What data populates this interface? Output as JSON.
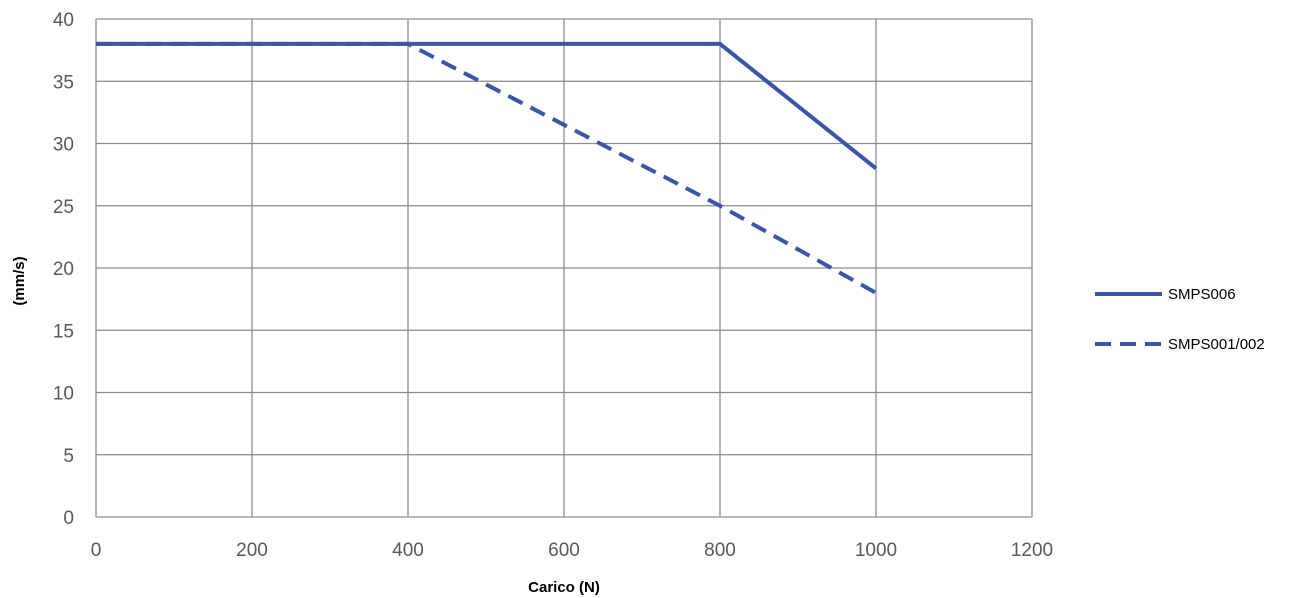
{
  "chart_data": {
    "type": "line",
    "title": "",
    "xlabel": "Carico (N)",
    "ylabel": "(mm/s)",
    "xlim": [
      0,
      1200
    ],
    "ylim": [
      0,
      40
    ],
    "x_ticks": [
      "0",
      "200",
      "400",
      "600",
      "800",
      "1000",
      "1200"
    ],
    "y_ticks": [
      "0",
      "5",
      "10",
      "15",
      "20",
      "25",
      "30",
      "35",
      "40"
    ],
    "grid": true,
    "legend_position": "right",
    "series": [
      {
        "name": "SMPS006",
        "style": "solid",
        "color": "#3a56a5",
        "x": [
          0,
          400,
          800,
          1000
        ],
        "y": [
          38,
          38,
          38,
          28
        ]
      },
      {
        "name": "SMPS001/002",
        "style": "dashed",
        "color": "#3a56a5",
        "x": [
          0,
          400,
          800,
          1000
        ],
        "y": [
          38,
          38,
          25,
          18
        ]
      }
    ]
  }
}
